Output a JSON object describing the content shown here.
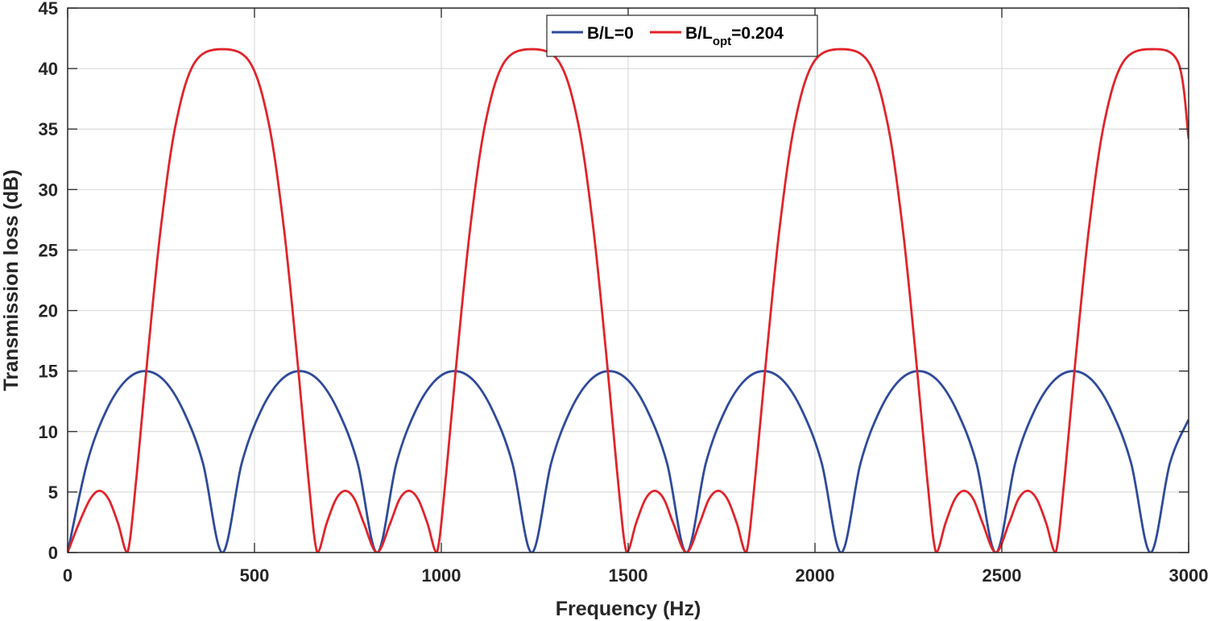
{
  "chart_data": {
    "type": "line",
    "xlabel": "Frequency (Hz)",
    "ylabel": "Transmission loss (dB)",
    "xlim": [
      0,
      3000
    ],
    "ylim": [
      0,
      45
    ],
    "x_ticks": [
      0,
      500,
      1000,
      1500,
      2000,
      2500,
      3000
    ],
    "y_ticks": [
      0,
      5,
      10,
      15,
      20,
      25,
      30,
      35,
      40,
      45
    ],
    "x_tick_labels": [
      "0",
      "500",
      "1000",
      "1500",
      "2000",
      "2500",
      "3000"
    ],
    "y_tick_labels": [
      "0",
      "5",
      "10",
      "15",
      "20",
      "25",
      "30",
      "35",
      "40",
      "45"
    ],
    "grid": true,
    "legend_position": "top-center",
    "series": [
      {
        "name": "B/L=0",
        "legend_main": "B/L=0",
        "color": "#2E4A9A",
        "points": [
          [
            0,
            0
          ],
          [
            52,
            7.4
          ],
          [
            103,
            11.7
          ],
          [
            155,
            14.2
          ],
          [
            207,
            15.0
          ],
          [
            259,
            14.2
          ],
          [
            310,
            11.7
          ],
          [
            362,
            7.4
          ],
          [
            414,
            0
          ],
          [
            466,
            7.4
          ],
          [
            517,
            11.7
          ],
          [
            569,
            14.2
          ],
          [
            621,
            15.0
          ],
          [
            673,
            14.2
          ],
          [
            724,
            11.7
          ],
          [
            776,
            7.4
          ],
          [
            828,
            0
          ],
          [
            880,
            7.4
          ],
          [
            931,
            11.7
          ],
          [
            983,
            14.2
          ],
          [
            1035,
            15.0
          ],
          [
            1087,
            14.2
          ],
          [
            1138,
            11.7
          ],
          [
            1190,
            7.4
          ],
          [
            1242,
            0
          ],
          [
            1294,
            7.4
          ],
          [
            1345,
            11.7
          ],
          [
            1397,
            14.2
          ],
          [
            1449,
            15.0
          ],
          [
            1501,
            14.2
          ],
          [
            1552,
            11.7
          ],
          [
            1604,
            7.4
          ],
          [
            1656,
            0
          ],
          [
            1708,
            7.4
          ],
          [
            1759,
            11.7
          ],
          [
            1811,
            14.2
          ],
          [
            1863,
            15.0
          ],
          [
            1915,
            14.2
          ],
          [
            1966,
            11.7
          ],
          [
            2018,
            7.4
          ],
          [
            2070,
            0
          ],
          [
            2122,
            7.4
          ],
          [
            2173,
            11.7
          ],
          [
            2225,
            14.2
          ],
          [
            2277,
            15.0
          ],
          [
            2329,
            14.2
          ],
          [
            2380,
            11.7
          ],
          [
            2432,
            7.4
          ],
          [
            2484,
            0
          ],
          [
            2536,
            7.4
          ],
          [
            2587,
            11.7
          ],
          [
            2639,
            14.2
          ],
          [
            2691,
            15.0
          ],
          [
            2743,
            14.2
          ],
          [
            2794,
            11.7
          ],
          [
            2846,
            7.4
          ],
          [
            2898,
            0
          ],
          [
            2950,
            7.4
          ],
          [
            3000,
            11.0
          ]
        ]
      },
      {
        "name": "B/Lopt=0.204",
        "legend_main": "B/L",
        "legend_sub": "opt",
        "legend_suffix": "=0.204",
        "color": "#E0242B",
        "points": [
          [
            0,
            0
          ],
          [
            30,
            2.4
          ],
          [
            60,
            4.4
          ],
          [
            85,
            5.1
          ],
          [
            110,
            4.4
          ],
          [
            135,
            2.4
          ],
          [
            160,
            0
          ],
          [
            185,
            6.5
          ],
          [
            215,
            16.5
          ],
          [
            250,
            27.0
          ],
          [
            290,
            35.5
          ],
          [
            340,
            40.5
          ],
          [
            414,
            41.6
          ],
          [
            488,
            40.5
          ],
          [
            538,
            35.5
          ],
          [
            578,
            27.0
          ],
          [
            613,
            16.5
          ],
          [
            643,
            6.5
          ],
          [
            668,
            0
          ],
          [
            693,
            2.4
          ],
          [
            718,
            4.4
          ],
          [
            743,
            5.1
          ],
          [
            768,
            4.4
          ],
          [
            793,
            2.4
          ],
          [
            828,
            0
          ],
          [
            863,
            2.4
          ],
          [
            888,
            4.4
          ],
          [
            913,
            5.1
          ],
          [
            938,
            4.4
          ],
          [
            963,
            2.4
          ],
          [
            988,
            0
          ],
          [
            1013,
            6.5
          ],
          [
            1043,
            16.5
          ],
          [
            1078,
            27.0
          ],
          [
            1118,
            35.5
          ],
          [
            1168,
            40.5
          ],
          [
            1242,
            41.6
          ],
          [
            1316,
            40.5
          ],
          [
            1366,
            35.5
          ],
          [
            1406,
            27.0
          ],
          [
            1441,
            16.5
          ],
          [
            1471,
            6.5
          ],
          [
            1496,
            0
          ],
          [
            1521,
            2.4
          ],
          [
            1546,
            4.4
          ],
          [
            1571,
            5.1
          ],
          [
            1596,
            4.4
          ],
          [
            1621,
            2.4
          ],
          [
            1656,
            0
          ],
          [
            1691,
            2.4
          ],
          [
            1716,
            4.4
          ],
          [
            1741,
            5.1
          ],
          [
            1766,
            4.4
          ],
          [
            1791,
            2.4
          ],
          [
            1816,
            0
          ],
          [
            1841,
            6.5
          ],
          [
            1871,
            16.5
          ],
          [
            1906,
            27.0
          ],
          [
            1946,
            35.5
          ],
          [
            1996,
            40.5
          ],
          [
            2070,
            41.6
          ],
          [
            2144,
            40.5
          ],
          [
            2194,
            35.5
          ],
          [
            2234,
            27.0
          ],
          [
            2269,
            16.5
          ],
          [
            2299,
            6.5
          ],
          [
            2324,
            0
          ],
          [
            2349,
            2.4
          ],
          [
            2374,
            4.4
          ],
          [
            2399,
            5.1
          ],
          [
            2424,
            4.4
          ],
          [
            2449,
            2.4
          ],
          [
            2484,
            0
          ],
          [
            2519,
            2.4
          ],
          [
            2544,
            4.4
          ],
          [
            2569,
            5.1
          ],
          [
            2594,
            4.4
          ],
          [
            2619,
            2.4
          ],
          [
            2644,
            0
          ],
          [
            2669,
            6.5
          ],
          [
            2699,
            16.5
          ],
          [
            2734,
            27.0
          ],
          [
            2774,
            35.5
          ],
          [
            2824,
            40.5
          ],
          [
            2898,
            41.6
          ],
          [
            2972,
            40.5
          ],
          [
            3000,
            34.2
          ]
        ]
      }
    ]
  }
}
